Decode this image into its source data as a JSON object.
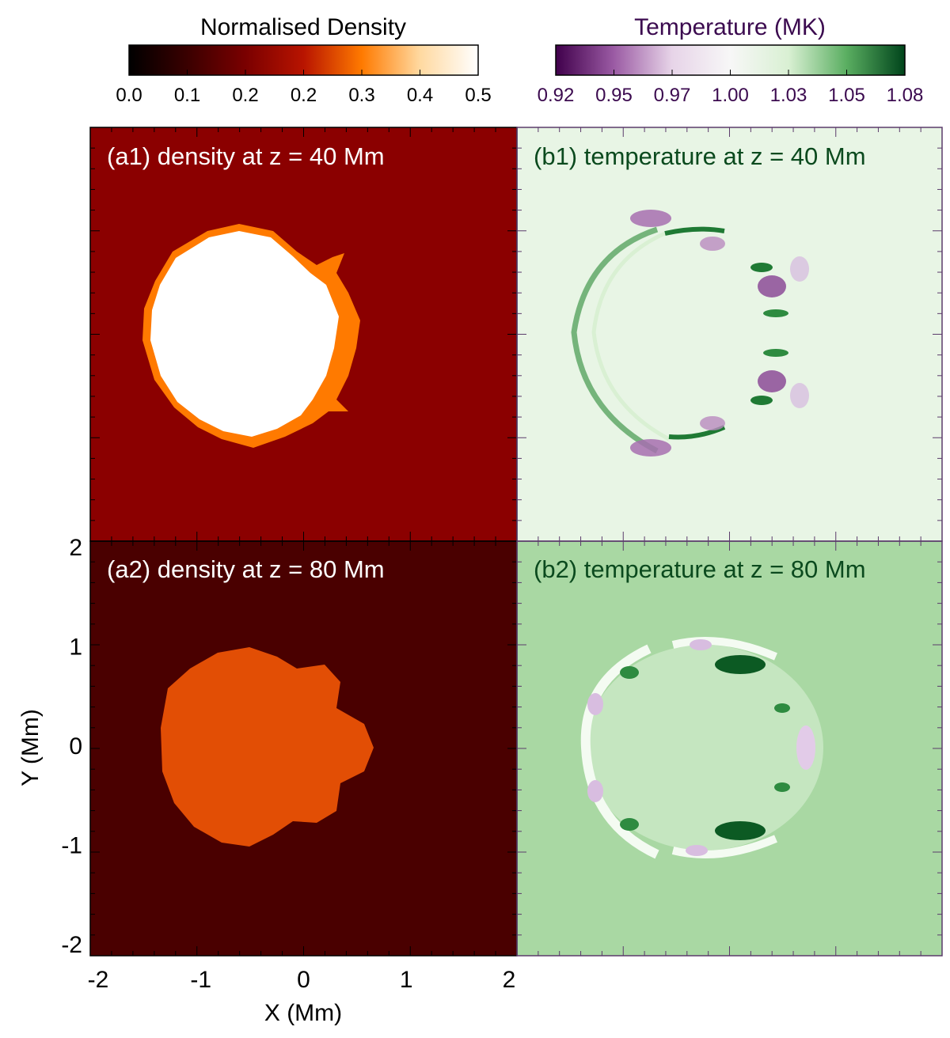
{
  "colorbars": {
    "density": {
      "title": "Normalised Density",
      "tick_labels": [
        "0.0",
        "0.1",
        "0.2",
        "0.2",
        "0.3",
        "0.4",
        "0.5"
      ],
      "range": [
        0,
        0.5
      ],
      "colormap": [
        "#000000",
        "#3a0000",
        "#7a0000",
        "#b81400",
        "#ff7a00",
        "#ffd9a0",
        "#ffffff"
      ]
    },
    "temperature": {
      "title": "Temperature (MK)",
      "tick_labels": [
        "0.92",
        "0.95",
        "0.97",
        "1.00",
        "1.03",
        "1.05",
        "1.08"
      ],
      "range": [
        0.92,
        1.08
      ],
      "colormap": [
        "#40004b",
        "#9b5ba4",
        "#e7d4e8",
        "#f7f7f7",
        "#d9f0d3",
        "#5aae61",
        "#00441b"
      ],
      "text_color": "#3b0a4f"
    }
  },
  "axes": {
    "xlabel": "X (Mm)",
    "ylabel": "Y (Mm)",
    "xticks": [
      "-2",
      "-1",
      "0",
      "1",
      "2"
    ],
    "yticks": [
      "2",
      "1",
      "0",
      "-1",
      "-2"
    ]
  },
  "chart_data": [
    {
      "type": "heatmap",
      "panel": "a1",
      "label": "(a1) density at z = 40 Mm",
      "quantity": "density",
      "x_range": [
        -2,
        2
      ],
      "y_range": [
        -2,
        2
      ],
      "background": "#8b0000",
      "blob": {
        "center": [
          -0.55,
          0
        ],
        "radius": 1.0,
        "color": "#ffffff",
        "edge": "#ff7a00"
      },
      "label_color": "#ffffff"
    },
    {
      "type": "heatmap",
      "panel": "b1",
      "label": "(b1) temperature at z = 40 Mm",
      "quantity": "temperature",
      "x_range": [
        -2,
        2
      ],
      "y_range": [
        -2,
        2
      ],
      "background": "#e8f5e5",
      "ring": {
        "center": [
          -0.55,
          0
        ],
        "radius": 1.1
      },
      "label_color": "#0b4a1e"
    },
    {
      "type": "heatmap",
      "panel": "a2",
      "label": "(a2) density at z = 80 Mm",
      "quantity": "density",
      "x_range": [
        -2,
        2
      ],
      "y_range": [
        -2,
        2
      ],
      "background": "#4a0000",
      "blob": {
        "center": [
          -0.4,
          0
        ],
        "radius": 1.0,
        "color": "#e24e05",
        "edge": "#e24e05"
      },
      "label_color": "#ffffff"
    },
    {
      "type": "heatmap",
      "panel": "b2",
      "label": "(b2) temperature at z = 80 Mm",
      "quantity": "temperature",
      "x_range": [
        -2,
        2
      ],
      "y_range": [
        -2,
        2
      ],
      "background": "#a9d8a3",
      "ring": {
        "center": [
          -0.4,
          0
        ],
        "radius": 1.05
      },
      "label_color": "#0b4a1e"
    }
  ]
}
